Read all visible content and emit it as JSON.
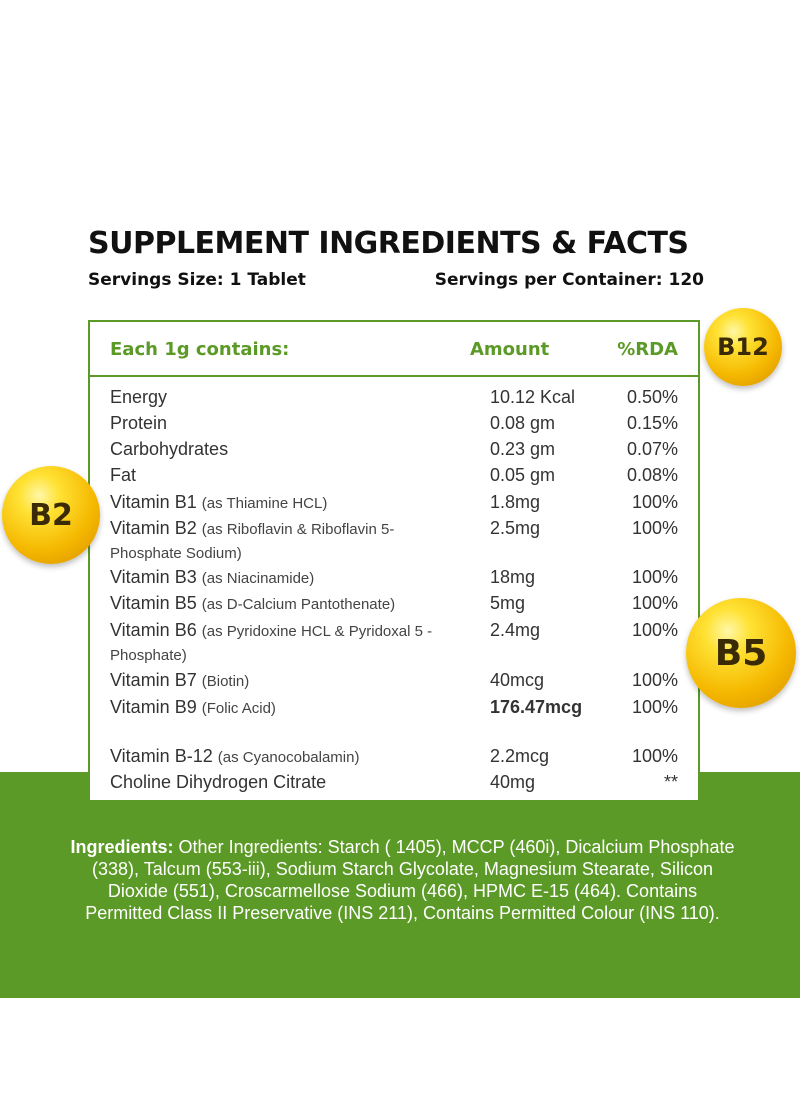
{
  "title": "SUPPLEMENT INGREDIENTS & FACTS",
  "servings": {
    "size": "Servings Size: 1 Tablet",
    "per_container": "Servings per Container: 120"
  },
  "table": {
    "header": {
      "label": "Each 1g contains:",
      "amount": "Amount",
      "rda": "%RDA"
    },
    "rows": [
      {
        "name": "Energy",
        "detail": "",
        "amount": "10.12 Kcal",
        "rda": "0.50%"
      },
      {
        "name": "Protein",
        "detail": "",
        "amount": "0.08 gm",
        "rda": "0.15%"
      },
      {
        "name": "Carbohydrates",
        "detail": "",
        "amount": "0.23 gm",
        "rda": "0.07%"
      },
      {
        "name": "Fat",
        "detail": "",
        "amount": "0.05 gm",
        "rda": "0.08%"
      },
      {
        "name": "Vitamin B1",
        "detail": "(as Thiamine HCL)",
        "amount": "1.8mg",
        "rda": "100%"
      },
      {
        "name": "Vitamin B2",
        "detail": "(as Riboflavin & Riboflavin 5-Phosphate Sodium)",
        "amount": "2.5mg",
        "rda": "100%"
      },
      {
        "name": "Vitamin B3",
        "detail": "(as Niacinamide)",
        "amount": "18mg",
        "rda": "100%"
      },
      {
        "name": "Vitamin B5",
        "detail": "(as D-Calcium Pantothenate)",
        "amount": "5mg",
        "rda": "100%"
      },
      {
        "name": "Vitamin B6",
        "detail": "(as Pyridoxine HCL & Pyridoxal 5 - Phosphate)",
        "amount": "2.4mg",
        "rda": "100%"
      },
      {
        "name": "Vitamin B7",
        "detail": "(Biotin)",
        "amount": "40mcg",
        "rda": "100%"
      },
      {
        "name": "Vitamin B9",
        "detail": "(Folic Acid)",
        "amount": "176.47mcg",
        "rda": "100%"
      },
      {
        "name": "Vitamin B-12",
        "detail": "(as Cyanocobalamin)",
        "amount": "2.2mcg",
        "rda": "100%"
      },
      {
        "name": "Choline Dihydrogen Citrate",
        "detail": "",
        "amount": "40mg",
        "rda": "**"
      }
    ]
  },
  "badges": {
    "b12": "B12",
    "b2": "B2",
    "b5": "B5"
  },
  "ingredients": {
    "label": "Ingredients:",
    "text": " Other Ingredients: Starch ( 1405), MCCP (460i), Dicalcium Phosphate (338), Talcum (553-iii), Sodium Starch Glycolate, Magnesium Stearate, Silicon Dioxide (551), Croscarmellose Sodium (466), HPMC E-15 (464). Contains Permitted Class II Preservative (INS 211), Contains Permitted Colour (INS 110)."
  },
  "colors": {
    "brand_green": "#5c9a27",
    "badge_gold": "#f5b800"
  }
}
